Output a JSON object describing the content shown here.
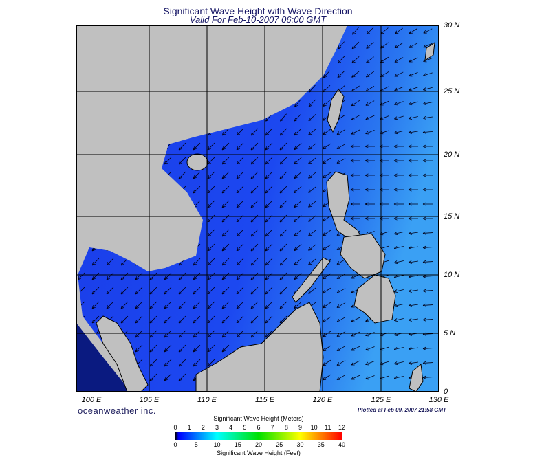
{
  "header": {
    "title": "Significant Wave Height with Wave Direction",
    "subtitle": "Valid For Feb-10-2007 06:00 GMT"
  },
  "map": {
    "lat_labels": [
      "30 N",
      "25 N",
      "20 N",
      "15 N",
      "10 N",
      "5 N",
      "0"
    ],
    "lon_labels": [
      "100 E",
      "105 E",
      "110 E",
      "115 E",
      "120 E",
      "125 E",
      "130 E"
    ],
    "land_color": "#c0c0c0",
    "ocean_color": "#1e3cf0"
  },
  "footer": {
    "brand": "oceanweather inc.",
    "plotted": "Plotted at Feb 09, 2007 21:58 GMT"
  },
  "colorbar": {
    "title_meters": "Significant Wave Height (Meters)",
    "title_feet": "Significant Wave Height (Feet)",
    "meters_ticks": [
      "0",
      "1",
      "2",
      "3",
      "4",
      "5",
      "6",
      "7",
      "8",
      "9",
      "10",
      "11",
      "12"
    ],
    "feet_ticks": [
      "0",
      "5",
      "10",
      "15",
      "20",
      "25",
      "30",
      "35",
      "40"
    ],
    "stops": [
      "#000000",
      "#0000ff",
      "#00ffff",
      "#00ff00",
      "#ffff00",
      "#ff0000"
    ]
  }
}
